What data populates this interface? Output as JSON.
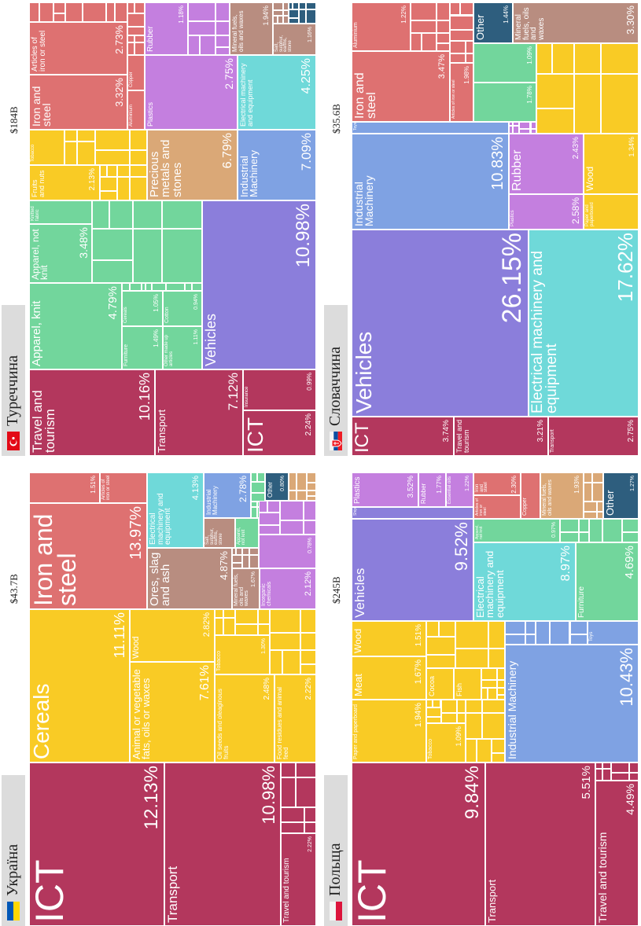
{
  "panels": [
    {
      "country": "Україна",
      "total": "$43.7B",
      "tiles": [
        {
          "name": "ICT",
          "value": 12.13,
          "label": "12.13%",
          "color": "#b3375d"
        },
        {
          "name": "Transport",
          "value": 10.98,
          "label": "10.98%",
          "color": "#b3375d"
        },
        {
          "name": "Travel and tourism",
          "value": 2.22,
          "label": "2.22%",
          "color": "#b3375d"
        },
        {
          "name": "Cereals",
          "value": 11.11,
          "label": "11.11%",
          "color": "#f9cb25"
        },
        {
          "name": "Animal or vegetable fats, oils or waxes",
          "value": 7.61,
          "label": "7.61%",
          "color": "#f9cb25"
        },
        {
          "name": "Wood",
          "value": 2.82,
          "label": "2.82%",
          "color": "#f9cb25"
        },
        {
          "name": "Oil seeds and oleaginous fruits",
          "value": 2.48,
          "label": "2.48%",
          "color": "#f9cb25"
        },
        {
          "name": "Food residues and animal feed",
          "value": 2.22,
          "label": "2.22%",
          "color": "#f9cb25"
        },
        {
          "name": "Tobacco",
          "value": 1.3,
          "label": "1.30%",
          "color": "#f9cb25"
        },
        {
          "name": "Iron and steel",
          "value": 13.97,
          "label": "13.97%",
          "color": "#de7171"
        },
        {
          "value": 1.51,
          "label": "1.51%",
          "color": "#de7171"
        },
        {
          "name": "Articles of iron or steel",
          "color": "#de7171"
        },
        {
          "name": "Ores, slag and ash",
          "value": 4.87,
          "label": "4.87%",
          "color": "#b88d80"
        },
        {
          "name": "Electrical machinery and equipment",
          "value": 4.13,
          "label": "4.13%",
          "color": "#6fd9d9"
        },
        {
          "name": "Salt, sulphur, earths, stone",
          "color": "#b88d80"
        },
        {
          "name": "Industrial Machinery",
          "value": 2.78,
          "label": "2.78%",
          "color": "#7fa2e3"
        },
        {
          "name": "Apparel, not knit",
          "color": "#72d69c"
        },
        {
          "name": "Mineral fuels, oils and waxes",
          "value": 1.67,
          "label": "1.67%",
          "color": "#b88d80"
        },
        {
          "name": "Inorganic chemicals",
          "value": 2.12,
          "label": "2.12%",
          "color": "#c47fdf"
        },
        {
          "name": "Other",
          "value": 0.8,
          "label": "0.80%",
          "color": "#2e5e7e"
        },
        {
          "value": 0.78,
          "label": "0.78%",
          "color": "#c47fdf"
        }
      ]
    },
    {
      "country": "Туреччина",
      "total": "$184B",
      "tiles": [
        {
          "name": "Travel and tourism",
          "value": 10.16,
          "label": "10.16%",
          "color": "#b3375d"
        },
        {
          "name": "Transport",
          "value": 7.12,
          "label": "7.12%",
          "color": "#b3375d"
        },
        {
          "name": "ICT",
          "value": 2.24,
          "label": "2.24%",
          "color": "#b3375d"
        },
        {
          "name": "Insurance",
          "value": 0.99,
          "label": "0.99%",
          "color": "#b3375d"
        },
        {
          "name": "Apparel, knit",
          "value": 4.79,
          "label": "4.79%",
          "color": "#72d69c"
        },
        {
          "name": "Apparel, not knit",
          "value": 3.48,
          "label": "3.48%",
          "color": "#72d69c"
        },
        {
          "name": "Knitted fabric",
          "color": "#72d69c"
        },
        {
          "name": "Furniture",
          "value": 1.49,
          "label": "1.49%",
          "color": "#72d69c"
        },
        {
          "name": "Other made up articles",
          "value": 1.11,
          "label": "1.11%",
          "color": "#72d69c"
        },
        {
          "name": "Cereals",
          "value": 1.05,
          "label": "1.05%",
          "color": "#72d69c"
        },
        {
          "name": "Cotton",
          "value": 0.94,
          "label": "0.94%",
          "color": "#72d69c"
        },
        {
          "name": "Vehicles",
          "value": 10.98,
          "label": "10.98%",
          "color": "#8b7edb"
        },
        {
          "name": "Fruits and nuts",
          "value": 2.13,
          "label": "2.13%",
          "color": "#f9cb25"
        },
        {
          "name": "Tobacco",
          "color": "#f9cb25"
        },
        {
          "name": "Precious metals and stones",
          "value": 6.79,
          "label": "6.79%",
          "color": "#daa877"
        },
        {
          "name": "Industrial Machinery",
          "value": 7.09,
          "label": "7.09%",
          "color": "#7fa2e3"
        },
        {
          "name": "Iron and steel",
          "value": 3.32,
          "label": "3.32%",
          "color": "#de7171"
        },
        {
          "name": "Articles of iron or steel",
          "value": 2.73,
          "label": "2.73%",
          "color": "#de7171"
        },
        {
          "name": "Aluminium",
          "color": "#de7171"
        },
        {
          "name": "Copper",
          "color": "#de7171"
        },
        {
          "name": "Plastics",
          "value": 2.75,
          "label": "2.75%",
          "color": "#c47fdf"
        },
        {
          "name": "Rubber",
          "value": 1.18,
          "label": "1.18%",
          "color": "#c47fdf"
        },
        {
          "name": "Electrical machinery and equipment",
          "value": 4.25,
          "label": "4.25%",
          "color": "#6fd9d9"
        },
        {
          "name": "Mineral fuels, oils and waxes",
          "value": 1.94,
          "label": "1.94%",
          "color": "#b88d80"
        },
        {
          "name": "Salt, sulphur, earths, stone",
          "value": 1.16,
          "label": "1.16%",
          "color": "#b88d80"
        }
      ]
    },
    {
      "country": "Польща",
      "total": "$245B",
      "tiles": [
        {
          "name": "ICT",
          "value": 9.84,
          "label": "9.84%",
          "color": "#b3375d"
        },
        {
          "name": "Transport",
          "value": 5.51,
          "label": "5.51%",
          "color": "#b3375d"
        },
        {
          "name": "Travel and tourism",
          "value": 4.49,
          "label": "4.49%",
          "color": "#b3375d"
        },
        {
          "name": "Paper and paperboard",
          "value": 1.94,
          "label": "1.94%",
          "color": "#f9cb25"
        },
        {
          "name": "Meat",
          "value": 1.67,
          "label": "1.67%",
          "color": "#f9cb25"
        },
        {
          "name": "Wood",
          "value": 1.51,
          "label": "1.51%",
          "color": "#f9cb25"
        },
        {
          "name": "Tobacco",
          "value": 1.09,
          "label": "1.09%",
          "color": "#f9cb25"
        },
        {
          "name": "Cocoa",
          "color": "#f9cb25"
        },
        {
          "name": "Fish",
          "color": "#f9cb25"
        },
        {
          "name": "Industrial Machinery",
          "value": 10.43,
          "label": "10.43%",
          "color": "#7fa2e3"
        },
        {
          "name": "Toys",
          "color": "#7fa2e3"
        },
        {
          "name": "Vehicles",
          "value": 9.52,
          "label": "9.52%",
          "color": "#8b7edb"
        },
        {
          "name": "Ships",
          "color": "#8b7edb"
        },
        {
          "name": "Plastics",
          "value": 3.52,
          "label": "3.52%",
          "color": "#c47fdf"
        },
        {
          "name": "Rubber",
          "value": 1.77,
          "label": "1.77%",
          "color": "#c47fdf"
        },
        {
          "name": "Essential oils",
          "value": 1.22,
          "label": "1.22%",
          "color": "#c47fdf"
        },
        {
          "name": "Electrical machinery and equipment",
          "value": 8.97,
          "label": "8.97%",
          "color": "#6fd9d9"
        },
        {
          "name": "Furniture",
          "value": 4.69,
          "label": "4.69%",
          "color": "#72d69c"
        },
        {
          "name": "Apparel, not knit",
          "value": 0.97,
          "label": "0.97%",
          "color": "#72d69c"
        },
        {
          "name": "Articles of iron or steel",
          "color": "#de7171"
        },
        {
          "name": "Iron and steel",
          "value": 2.3,
          "label": "2.30%",
          "color": "#de7171"
        },
        {
          "name": "Copper",
          "color": "#de7171"
        },
        {
          "name": "Mineral fuels, oils and waxes",
          "value": 1.93,
          "label": "1.93%",
          "color": "#daa877"
        },
        {
          "name": "Other",
          "value": 1.27,
          "label": "1.27%",
          "color": "#2e5e7e"
        }
      ]
    },
    {
      "country": "Словаччина",
      "total": "$35.6B",
      "tiles": [
        {
          "name": "ICT",
          "value": 3.74,
          "label": "3.74%",
          "color": "#b3375d"
        },
        {
          "name": "Travel and tourism",
          "value": 3.21,
          "label": "3.21%",
          "color": "#b3375d"
        },
        {
          "name": "Transport",
          "value": 2.75,
          "label": "2.75%",
          "color": "#b3375d"
        },
        {
          "name": "Vehicles",
          "value": 26.15,
          "label": "26.15%",
          "color": "#8b7edb"
        },
        {
          "name": "Electrical machinery and equipment",
          "value": 17.62,
          "label": "17.62%",
          "color": "#6fd9d9"
        },
        {
          "name": "Industrial Machinery",
          "value": 10.83,
          "label": "10.83%",
          "color": "#7fa2e3"
        },
        {
          "name": "Toys",
          "color": "#7fa2e3"
        },
        {
          "name": "Iron and steel",
          "value": 3.47,
          "label": "3.47%",
          "color": "#de7171"
        },
        {
          "name": "Aluminium",
          "value": 1.22,
          "label": "1.22%",
          "color": "#de7171"
        },
        {
          "name": "Articles of iron or steel",
          "value": 1.98,
          "label": "1.98%",
          "color": "#de7171"
        },
        {
          "value": 1.78,
          "label": "1.78%",
          "color": "#72d69c"
        },
        {
          "value": 1.09,
          "label": "1.09%",
          "color": "#72d69c"
        },
        {
          "name": "Other",
          "value": 1.44,
          "label": "1.44%",
          "color": "#2e5e7e"
        },
        {
          "name": "Mineral fuels, oils and waxes",
          "value": 3.3,
          "label": "3.30%",
          "color": "#b88d80"
        },
        {
          "name": "Plastics",
          "value": 2.58,
          "label": "2.58%",
          "color": "#c47fdf"
        },
        {
          "name": "Rubber",
          "value": 2.43,
          "label": "2.43%",
          "color": "#c47fdf"
        },
        {
          "name": "Paper and paperboard",
          "color": "#f9cb25"
        },
        {
          "name": "Wood",
          "value": 1.34,
          "label": "1.34%",
          "color": "#f9cb25"
        }
      ]
    }
  ]
}
